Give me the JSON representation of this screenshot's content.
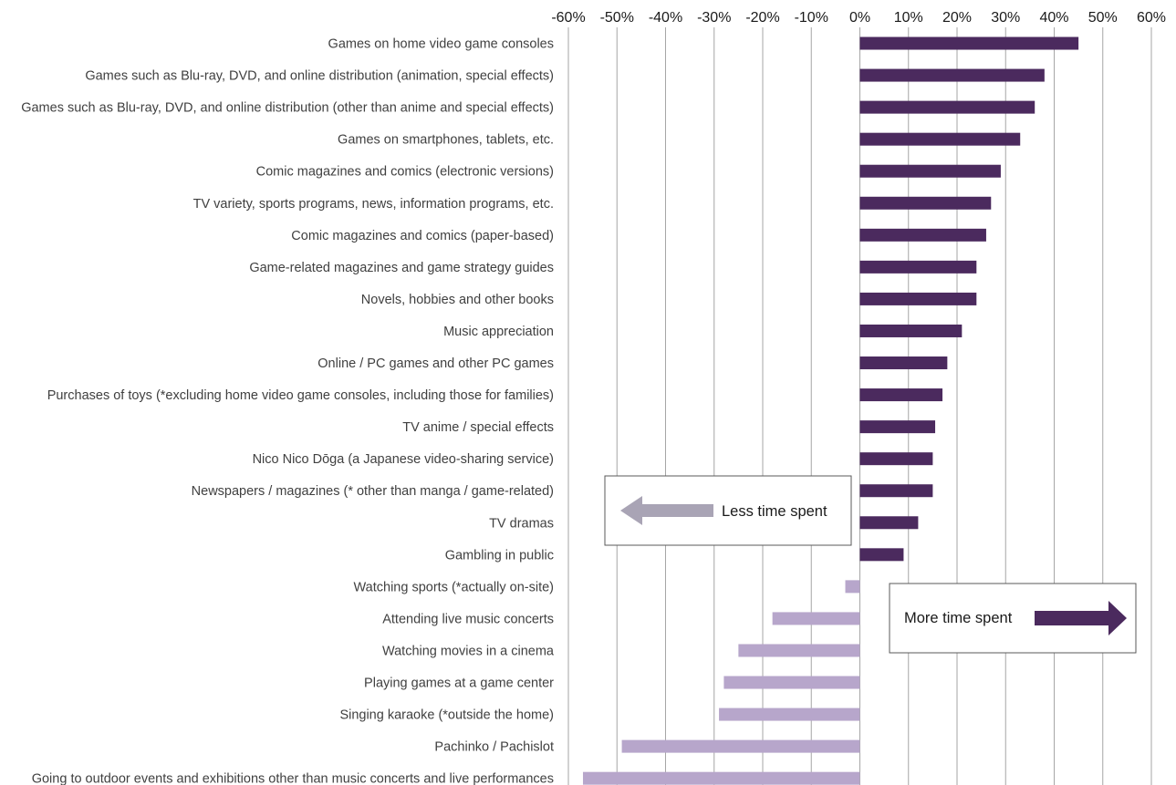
{
  "chart_data": {
    "type": "bar",
    "orientation": "horizontal",
    "categories": [
      "Games on home video game consoles",
      "Games such as Blu-ray, DVD, and online distribution (animation, special effects)",
      "Games such as Blu-ray, DVD, and online distribution (other than anime and special effects)",
      "Games on smartphones, tablets, etc.",
      "Comic magazines and comics (electronic versions)",
      "TV variety, sports programs, news, information programs, etc.",
      "Comic magazines and comics (paper-based)",
      "Game-related magazines and game strategy guides",
      "Novels, hobbies and other books",
      "Music appreciation",
      "Online / PC games and other PC games",
      "Purchases of toys (*excluding home video game consoles, including those for families)",
      "TV anime / special effects",
      "Nico Nico Dōga (a Japanese video-sharing service)",
      "Newspapers / magazines (* other than manga / game-related)",
      "TV dramas",
      "Gambling in public",
      "Watching sports (*actually on-site)",
      "Attending live music concerts",
      "Watching movies in a cinema",
      "Playing games at a game center",
      "Singing karaoke (*outside the home)",
      "Pachinko / Pachislot",
      "Going to outdoor events and exhibitions other than music concerts and live performances"
    ],
    "values": [
      45,
      38,
      36,
      33,
      29,
      27,
      26,
      24,
      24,
      21,
      18,
      17,
      15.5,
      15,
      15,
      12,
      9,
      -3,
      -18,
      -25,
      -28,
      -29,
      -49,
      -57
    ],
    "xlim": [
      -60,
      60
    ],
    "xticks": [
      -60,
      -50,
      -40,
      -30,
      -20,
      -10,
      0,
      10,
      20,
      30,
      40,
      50,
      60
    ],
    "xtick_labels": [
      "-60%",
      "-50%",
      "-40%",
      "-30%",
      "-20%",
      "-10%",
      "0%",
      "10%",
      "20%",
      "30%",
      "40%",
      "50%",
      "60%"
    ],
    "grid": "vertical",
    "colors": {
      "positive": "#4b2a5e",
      "negative": "#b7a6cb",
      "arrow_less": "#a9a4b5",
      "arrow_more": "#4b2a5e",
      "grid": "#a6a6a6"
    },
    "legend": {
      "less": {
        "label": "Less time spent",
        "placement": "center-left",
        "icon": "left-arrow-icon"
      },
      "more": {
        "label": "More time spent",
        "placement": "lower-right",
        "icon": "right-arrow-icon"
      }
    }
  }
}
